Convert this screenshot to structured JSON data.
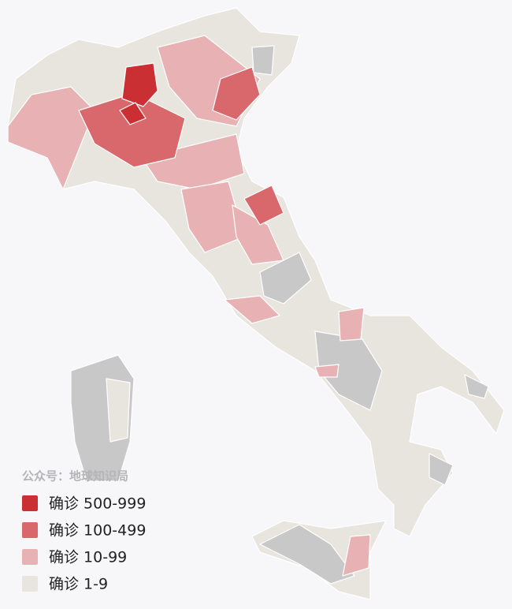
{
  "watermark": "公众号：地球知识局",
  "legend": [
    {
      "label": "确诊 500-999",
      "color": "#c92f33"
    },
    {
      "label": "确诊 100-499",
      "color": "#d9686c"
    },
    {
      "label": "确诊 10-99",
      "color": "#e8b2b5"
    },
    {
      "label": "确诊 1-9",
      "color": "#e8e5df"
    }
  ]
}
